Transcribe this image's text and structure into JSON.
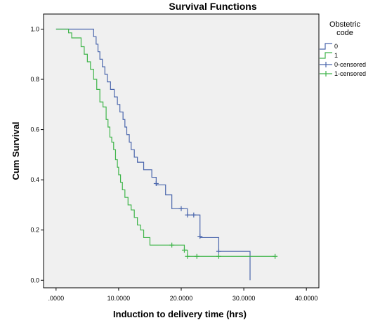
{
  "chart_data": {
    "type": "line",
    "title": "Survival Functions",
    "xlabel": "Induction to delivery time (hrs)",
    "ylabel": "Cum Survival",
    "xlim": [
      -2,
      42
    ],
    "ylim": [
      -0.03,
      1.06
    ],
    "x_ticks": [
      0,
      10,
      20,
      30,
      40
    ],
    "x_tick_labels": [
      ".0000",
      "10.0000",
      "20.0000",
      "30.0000",
      "40.0000"
    ],
    "y_ticks": [
      0.0,
      0.2,
      0.4,
      0.6,
      0.8,
      1.0
    ],
    "y_tick_labels": [
      "0.0",
      "0.2",
      "0.4",
      "0.6",
      "0.8",
      "1.0"
    ],
    "plot_background": "#f0f0f0",
    "grid": false,
    "legend": {
      "title_lines": [
        "Obstetric",
        "code"
      ],
      "position": "right",
      "entries": [
        {
          "label": "0",
          "kind": "line",
          "series": 0
        },
        {
          "label": "1",
          "kind": "line",
          "series": 1
        },
        {
          "label": "0-censored",
          "kind": "censor",
          "series": 0
        },
        {
          "label": "1-censored",
          "kind": "censor",
          "series": 1
        }
      ]
    },
    "series": [
      {
        "name": "0",
        "color": "#4a66ac",
        "steps": [
          [
            0,
            1.0
          ],
          [
            6.0,
            0.97
          ],
          [
            6.4,
            0.94
          ],
          [
            6.7,
            0.91
          ],
          [
            7.0,
            0.88
          ],
          [
            7.4,
            0.85
          ],
          [
            7.8,
            0.82
          ],
          [
            8.2,
            0.79
          ],
          [
            8.7,
            0.76
          ],
          [
            9.3,
            0.73
          ],
          [
            9.8,
            0.7
          ],
          [
            10.2,
            0.67
          ],
          [
            10.7,
            0.64
          ],
          [
            11.0,
            0.61
          ],
          [
            11.3,
            0.58
          ],
          [
            11.7,
            0.55
          ],
          [
            12.0,
            0.52
          ],
          [
            12.5,
            0.49
          ],
          [
            13.0,
            0.47
          ],
          [
            14.0,
            0.44
          ],
          [
            15.3,
            0.41
          ],
          [
            16.0,
            0.38
          ],
          [
            17.5,
            0.34
          ],
          [
            18.5,
            0.285
          ],
          [
            21.0,
            0.26
          ],
          [
            23.0,
            0.17
          ],
          [
            26.0,
            0.115
          ],
          [
            31.0,
            0.0
          ]
        ],
        "censored": [
          [
            16.0,
            0.385
          ],
          [
            20.0,
            0.285
          ],
          [
            21.0,
            0.26
          ],
          [
            22.0,
            0.26
          ],
          [
            23.0,
            0.175
          ],
          [
            26.0,
            0.115
          ]
        ]
      },
      {
        "name": "1",
        "color": "#3fb54a",
        "steps": [
          [
            0,
            1.0
          ],
          [
            2.0,
            0.985
          ],
          [
            2.5,
            0.965
          ],
          [
            4.0,
            0.93
          ],
          [
            4.5,
            0.9
          ],
          [
            5.0,
            0.87
          ],
          [
            5.5,
            0.84
          ],
          [
            6.0,
            0.8
          ],
          [
            6.5,
            0.76
          ],
          [
            7.0,
            0.71
          ],
          [
            7.5,
            0.69
          ],
          [
            8.0,
            0.64
          ],
          [
            8.3,
            0.61
          ],
          [
            8.6,
            0.57
          ],
          [
            8.9,
            0.55
          ],
          [
            9.2,
            0.52
          ],
          [
            9.5,
            0.48
          ],
          [
            9.8,
            0.45
          ],
          [
            10.0,
            0.42
          ],
          [
            10.3,
            0.39
          ],
          [
            10.6,
            0.36
          ],
          [
            11.0,
            0.33
          ],
          [
            11.5,
            0.3
          ],
          [
            12.0,
            0.28
          ],
          [
            12.5,
            0.25
          ],
          [
            13.0,
            0.22
          ],
          [
            13.5,
            0.2
          ],
          [
            14.0,
            0.17
          ],
          [
            15.0,
            0.14
          ],
          [
            20.5,
            0.12
          ],
          [
            21.0,
            0.095
          ]
        ],
        "end_x": 35.0,
        "censored": [
          [
            18.5,
            0.14
          ],
          [
            20.5,
            0.12
          ],
          [
            21.0,
            0.095
          ],
          [
            22.5,
            0.095
          ],
          [
            26.0,
            0.095
          ],
          [
            35.0,
            0.095
          ]
        ]
      }
    ]
  }
}
